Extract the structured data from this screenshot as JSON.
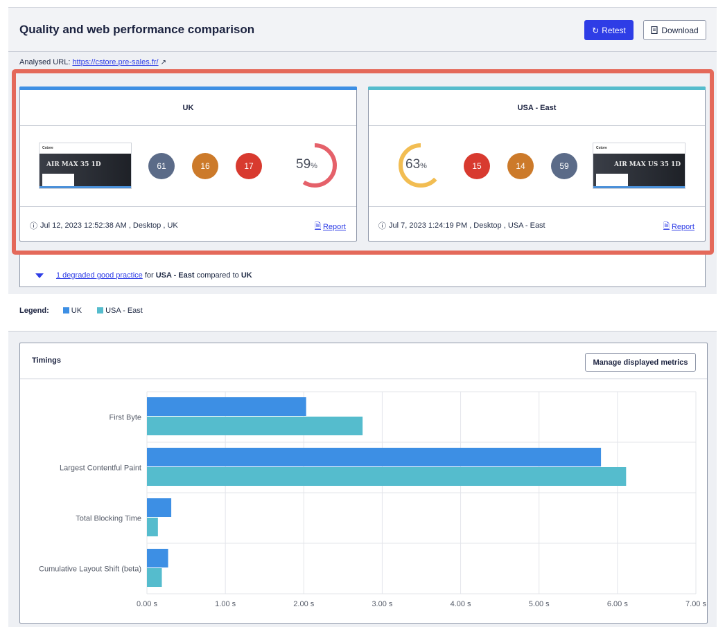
{
  "header": {
    "title": "Quality and web performance comparison",
    "retest_label": "Retest",
    "download_label": "Download"
  },
  "analysed": {
    "label": "Analysed URL:",
    "url": "https://cstore.pre-sales.fr/"
  },
  "cards": [
    {
      "title": "UK",
      "bar_color": "#3d8fe4",
      "score_circles": [
        {
          "value": "61",
          "color": "#5b6b88"
        },
        {
          "value": "16",
          "color": "#cc7a2a"
        },
        {
          "value": "17",
          "color": "#d83a2f"
        }
      ],
      "gauge_value": "59",
      "gauge_unit": "%",
      "gauge_fraction": 0.59,
      "gauge_color": "#e5616a",
      "footer": "Jul 12, 2023 12:52:38 AM , Desktop , UK",
      "report_label": "Report",
      "screenshot": {
        "logo": "Cstore",
        "hero": "AIR MAX 35 1D"
      }
    },
    {
      "title": "USA - East",
      "bar_color": "#55bccd",
      "score_circles": [
        {
          "value": "15",
          "color": "#d83a2f"
        },
        {
          "value": "14",
          "color": "#cc7a2a"
        },
        {
          "value": "59",
          "color": "#5b6b88"
        }
      ],
      "gauge_value": "63",
      "gauge_unit": "%",
      "gauge_fraction": 0.63,
      "gauge_color": "#f2bd52",
      "footer": "Jul 7, 2023 1:24:19 PM , Desktop , USA - East",
      "report_label": "Report",
      "screenshot": {
        "logo": "Cstore",
        "hero": "AIR MAX US 35 1D"
      }
    }
  ],
  "degraded": {
    "link": "1 degraded good practice",
    "mid": " for ",
    "target": "USA - East",
    "mid2": " compared to ",
    "base": "UK"
  },
  "legend": {
    "label": "Legend:",
    "items": [
      {
        "name": "UK",
        "color": "#3d8fe4"
      },
      {
        "name": "USA - East",
        "color": "#55bccd"
      }
    ]
  },
  "timings": {
    "title": "Timings",
    "manage_label": "Manage displayed metrics"
  },
  "chart_data": {
    "type": "bar",
    "orientation": "horizontal",
    "categories": [
      "First Byte",
      "Largest Contentful Paint",
      "Total Blocking Time",
      "Cumulative Layout Shift (beta)"
    ],
    "series": [
      {
        "name": "UK",
        "color": "#3d8fe4",
        "values": [
          2.03,
          5.79,
          0.31,
          0.27
        ]
      },
      {
        "name": "USA - East",
        "color": "#55bccd",
        "values": [
          2.75,
          6.11,
          0.14,
          0.19
        ]
      }
    ],
    "xlim": [
      0,
      7
    ],
    "x_ticks": [
      "0.00 s",
      "1.00 s",
      "2.00 s",
      "3.00 s",
      "4.00 s",
      "5.00 s",
      "6.00 s",
      "7.00 s"
    ],
    "grid": true
  }
}
